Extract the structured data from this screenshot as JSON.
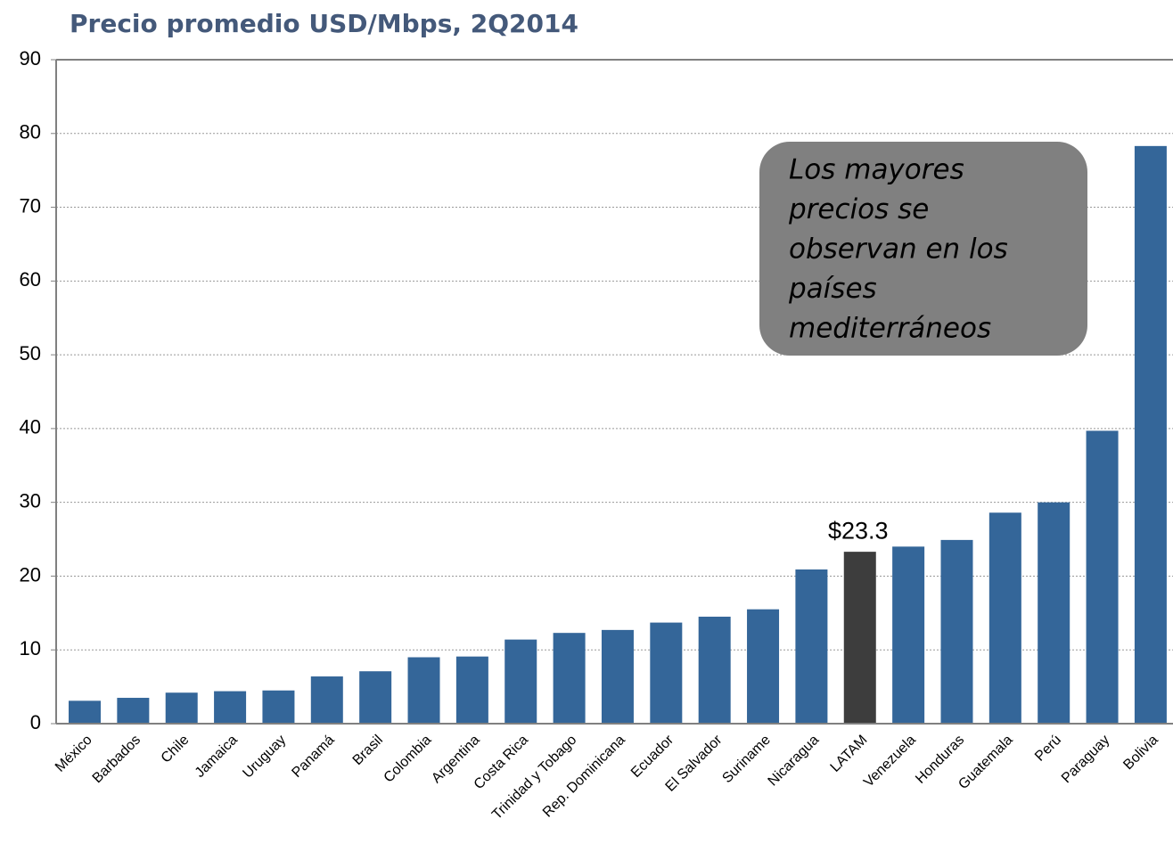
{
  "chart_data": {
    "type": "bar",
    "title": "Precio promedio USD/Mbps, 2Q2014",
    "categories": [
      "México",
      "Barbados",
      "Chile",
      "Jamaica",
      "Uruguay",
      "Panamá",
      "Brasil",
      "Colombia",
      "Argentina",
      "Costa Rica",
      "Trinidad y Tobago",
      "Rep. Dominicana",
      "Ecuador",
      "El Salvador",
      "Suriname",
      "Nicaragua",
      "LATAM",
      "Venezuela",
      "Honduras",
      "Guatemala",
      "Perú",
      "Paraguay",
      "Bolivia"
    ],
    "values": [
      3.1,
      3.5,
      4.2,
      4.4,
      4.5,
      6.4,
      7.1,
      9.0,
      9.1,
      11.4,
      12.3,
      12.7,
      13.7,
      14.5,
      15.5,
      20.9,
      23.3,
      24.0,
      24.9,
      28.6,
      30.0,
      39.7,
      78.3
    ],
    "value_labels": [
      null,
      null,
      null,
      null,
      null,
      null,
      null,
      null,
      null,
      null,
      null,
      null,
      null,
      null,
      null,
      null,
      "$23.3",
      null,
      null,
      null,
      null,
      null,
      null
    ],
    "colors": [
      "#346699",
      "#346699",
      "#346699",
      "#346699",
      "#346699",
      "#346699",
      "#346699",
      "#346699",
      "#346699",
      "#346699",
      "#346699",
      "#346699",
      "#346699",
      "#346699",
      "#346699",
      "#346699",
      "#3d3d3d",
      "#346699",
      "#346699",
      "#346699",
      "#346699",
      "#346699",
      "#346699"
    ],
    "ylim": [
      0,
      90
    ],
    "yticks": [
      0,
      10,
      20,
      30,
      40,
      50,
      60,
      70,
      80,
      90
    ],
    "grid": true,
    "annotation": [
      "Los mayores",
      "precios se",
      "observan en los",
      "países",
      "mediterráneos"
    ]
  }
}
